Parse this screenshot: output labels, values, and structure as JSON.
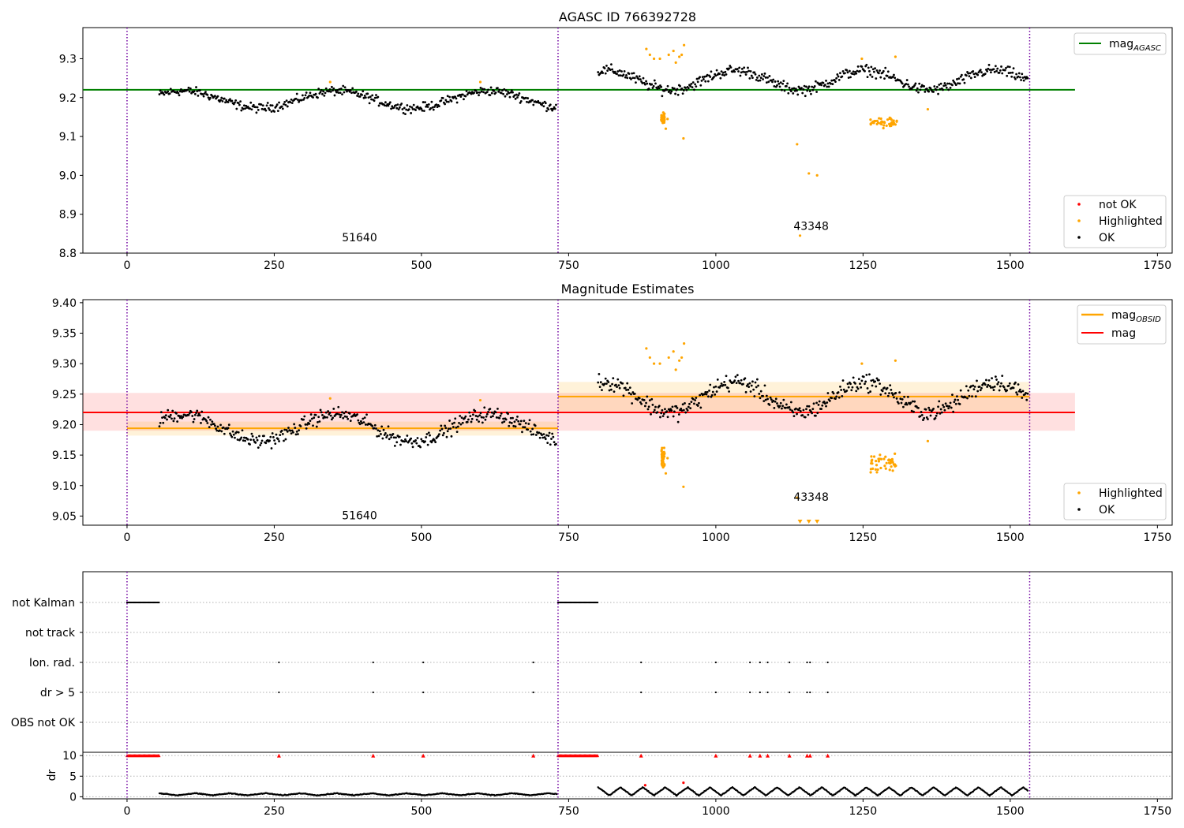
{
  "chart_data": [
    {
      "type": "scatter",
      "title": "AGASC ID 766392728",
      "xlim": [
        -75,
        1775
      ],
      "ylim": [
        8.8,
        9.38
      ],
      "x_ticks": [
        0,
        250,
        500,
        750,
        1000,
        1250,
        1500,
        1750
      ],
      "y_ticks": [
        8.8,
        8.9,
        9.0,
        9.1,
        9.2,
        9.3
      ],
      "obs_boundaries": [
        0,
        732,
        1533
      ],
      "obs_labels": [
        {
          "text": "51640",
          "x": 365,
          "y": 8.83
        },
        {
          "text": "43348",
          "x": 1132,
          "y": 8.86
        }
      ],
      "hlines": [
        {
          "name": "mag_AGASC",
          "value": 9.22,
          "x": [
            -75,
            1610
          ],
          "color": "#008000"
        }
      ],
      "legend_lines": [
        {
          "name": "mag",
          "sub": "AGASC",
          "color": "#008000"
        }
      ],
      "legend_points": [
        {
          "name": "not OK",
          "color": "#ff0000"
        },
        {
          "name": "Highlighted",
          "color": "#ffa500"
        },
        {
          "name": "OK",
          "color": "#000000"
        }
      ],
      "highlighted_points": [
        [
          345,
          9.24
        ],
        [
          600,
          9.24
        ],
        [
          882,
          9.325
        ],
        [
          888,
          9.31
        ],
        [
          895,
          9.3
        ],
        [
          905,
          9.3
        ],
        [
          912,
          9.155
        ],
        [
          915,
          9.12
        ],
        [
          918,
          9.145
        ],
        [
          920,
          9.31
        ],
        [
          928,
          9.32
        ],
        [
          932,
          9.29
        ],
        [
          938,
          9.305
        ],
        [
          942,
          9.31
        ],
        [
          946,
          9.335
        ],
        [
          945,
          9.095
        ],
        [
          1138,
          9.08
        ],
        [
          1143,
          8.845
        ],
        [
          1158,
          9.005
        ],
        [
          1172,
          9.0
        ],
        [
          1248,
          9.3
        ],
        [
          1305,
          9.305
        ],
        [
          1360,
          9.17
        ]
      ],
      "highlighted_clusters": [
        [
          910,
          9.145,
          6,
          0.012
        ],
        [
          1285,
          9.137,
          45,
          0.012
        ]
      ],
      "ok_segments": [
        {
          "x": [
            55,
            730
          ],
          "mean": 9.195,
          "amp": 0.022,
          "period": 260,
          "phase": 0.6,
          "noise": 0.01
        },
        {
          "x": [
            800,
            1530
          ],
          "mean": 9.245,
          "amp": 0.025,
          "period": 220,
          "phase": 1.2,
          "noise": 0.012
        }
      ]
    },
    {
      "type": "scatter",
      "title": "Magnitude Estimates",
      "xlim": [
        -75,
        1775
      ],
      "ylim": [
        9.035,
        9.405
      ],
      "x_ticks": [
        0,
        250,
        500,
        750,
        1000,
        1250,
        1500,
        1750
      ],
      "y_ticks": [
        9.05,
        9.1,
        9.15,
        9.2,
        9.25,
        9.3,
        9.35,
        9.4
      ],
      "y_tick_labels": [
        "9.05",
        "9.10",
        "9.15",
        "9.20",
        "9.25",
        "9.30",
        "9.35",
        "9.40"
      ],
      "obs_boundaries": [
        0,
        732,
        1533
      ],
      "obs_labels": [
        {
          "text": "51640",
          "x": 365,
          "y": 9.045
        },
        {
          "text": "43348",
          "x": 1132,
          "y": 9.075
        }
      ],
      "bands": [
        {
          "x": [
            -75,
            1610
          ],
          "y": [
            9.19,
            9.252
          ],
          "color": "#ff0000",
          "opacity": 0.12
        },
        {
          "x": [
            0,
            732
          ],
          "y": [
            9.182,
            9.205
          ],
          "color": "#ffa500",
          "opacity": 0.15
        },
        {
          "x": [
            732,
            1533
          ],
          "y": [
            9.222,
            9.27
          ],
          "color": "#ffa500",
          "opacity": 0.15
        }
      ],
      "lines": [
        {
          "name": "mag",
          "x": [
            -75,
            1610
          ],
          "y": 9.22,
          "color": "#ff0000"
        },
        {
          "name": "mag_OBSID",
          "x": [
            0,
            732
          ],
          "y": 9.194,
          "color": "#ffa500"
        },
        {
          "name": "mag_OBSID",
          "x": [
            732,
            1533
          ],
          "y": 9.246,
          "color": "#ffa500"
        }
      ],
      "legend_lines": [
        {
          "name": "mag",
          "sub": "OBSID",
          "color": "#ffa500"
        },
        {
          "name": "mag",
          "sub": "",
          "color": "#ff0000"
        }
      ],
      "legend_points": [
        {
          "name": "Highlighted",
          "color": "#ffa500"
        },
        {
          "name": "OK",
          "color": "#000000"
        }
      ],
      "highlighted_points": [
        [
          345,
          9.243
        ],
        [
          600,
          9.24
        ],
        [
          882,
          9.325
        ],
        [
          888,
          9.31
        ],
        [
          895,
          9.3
        ],
        [
          905,
          9.3
        ],
        [
          912,
          9.155
        ],
        [
          915,
          9.12
        ],
        [
          918,
          9.145
        ],
        [
          920,
          9.31
        ],
        [
          928,
          9.32
        ],
        [
          932,
          9.29
        ],
        [
          938,
          9.305
        ],
        [
          942,
          9.31
        ],
        [
          946,
          9.333
        ],
        [
          945,
          9.098
        ],
        [
          1138,
          9.08
        ],
        [
          1248,
          9.3
        ],
        [
          1305,
          9.305
        ],
        [
          1360,
          9.173
        ]
      ],
      "below_range_markers": [
        1143,
        1158,
        1172
      ],
      "highlighted_clusters": [
        [
          910,
          9.145,
          6,
          0.012
        ],
        [
          1285,
          9.137,
          45,
          0.012
        ]
      ],
      "ok_segments": [
        {
          "x": [
            55,
            730
          ],
          "mean": 9.195,
          "amp": 0.022,
          "period": 260,
          "phase": 0.6,
          "noise": 0.01
        },
        {
          "x": [
            800,
            1530
          ],
          "mean": 9.245,
          "amp": 0.025,
          "period": 220,
          "phase": 1.2,
          "noise": 0.012
        }
      ]
    },
    {
      "type": "scatter",
      "title": "",
      "xlim": [
        -75,
        1775
      ],
      "categories": [
        "not Kalman",
        "not track",
        "Ion. rad.",
        "dr > 5",
        "OBS not OK"
      ],
      "obs_boundaries": [
        0,
        732,
        1533
      ],
      "not_kalman_ranges": [
        [
          0,
          55
        ],
        [
          732,
          800
        ]
      ],
      "ion_rad_x": [
        258,
        418,
        503,
        690,
        873,
        1000,
        1058,
        1075,
        1088,
        1125,
        1155,
        1160,
        1190
      ],
      "dr_gt5_x": [
        258,
        418,
        503,
        690,
        873,
        1000,
        1058,
        1075,
        1088,
        1125,
        1155,
        1160,
        1190
      ]
    },
    {
      "type": "scatter",
      "title": "",
      "ylabel": "dr",
      "xlim": [
        -75,
        1775
      ],
      "ylim": [
        -0.5,
        10.8
      ],
      "x_ticks": [
        0,
        250,
        500,
        750,
        1000,
        1250,
        1500,
        1750
      ],
      "y_ticks": [
        0,
        5,
        10
      ],
      "obs_boundaries": [
        0,
        732,
        1533
      ],
      "clipped_red_x": [
        258,
        418,
        503,
        690,
        873,
        1000,
        1058,
        1075,
        1088,
        1125,
        1155,
        1160,
        1190
      ],
      "clipped_ranges": [
        [
          0,
          55
        ],
        [
          732,
          800
        ]
      ],
      "red_points": [
        [
          880,
          2.8
        ],
        [
          945,
          3.4
        ]
      ],
      "ok_segments": [
        {
          "x": [
            55,
            730
          ],
          "mean": 0.6,
          "amp": 0.25,
          "period": 60
        },
        {
          "x": [
            800,
            1530
          ],
          "mean": 1.3,
          "amp": 1.0,
          "period": 38
        }
      ]
    }
  ]
}
